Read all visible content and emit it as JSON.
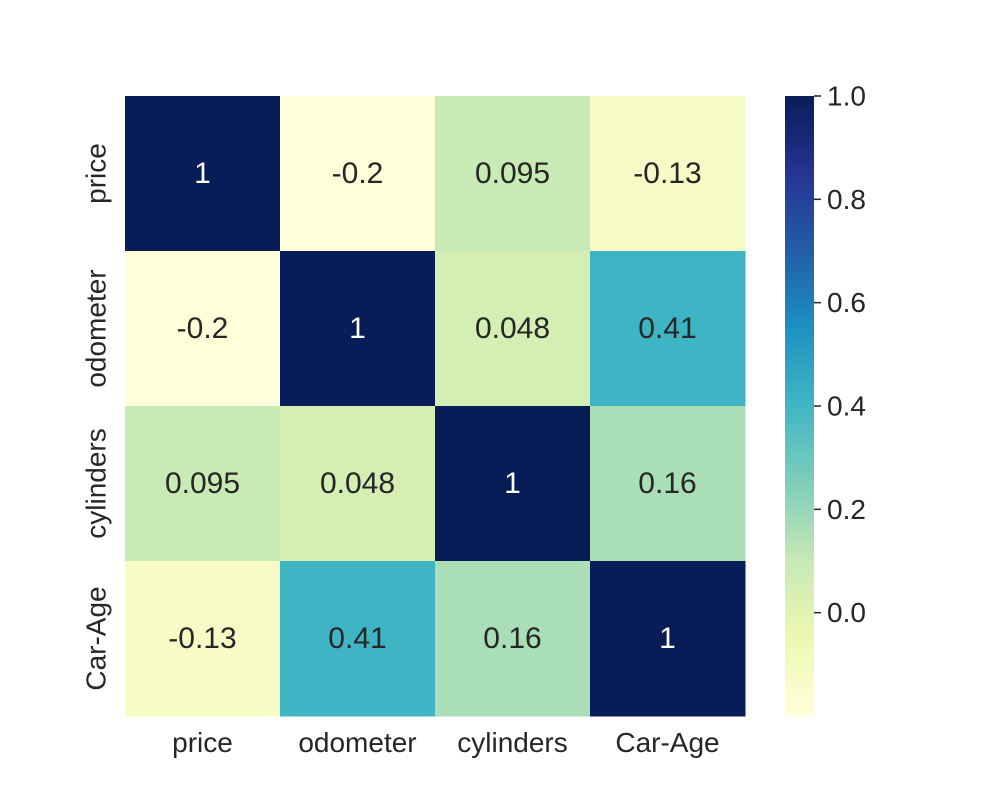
{
  "chart_data": {
    "type": "heatmap",
    "title": "",
    "xlabel": "",
    "ylabel": "",
    "x_categories": [
      "price",
      "odometer",
      "cylinders",
      "Car-Age"
    ],
    "y_categories": [
      "price",
      "odometer",
      "cylinders",
      "Car-Age"
    ],
    "values": [
      [
        1,
        -0.2,
        0.095,
        -0.13
      ],
      [
        -0.2,
        1,
        0.048,
        0.41
      ],
      [
        0.095,
        0.048,
        1,
        0.16
      ],
      [
        -0.13,
        0.41,
        0.16,
        1
      ]
    ],
    "annotations": [
      [
        "1",
        "-0.2",
        "0.095",
        "-0.13"
      ],
      [
        "-0.2",
        "1",
        "0.048",
        "0.41"
      ],
      [
        "0.095",
        "0.048",
        "1",
        "0.16"
      ],
      [
        "-0.13",
        "0.41",
        "0.16",
        "1"
      ]
    ],
    "colorscale": "YlGnBu",
    "color_range": [
      -0.2,
      1.0
    ],
    "colorbar": {
      "ticks": [
        0.0,
        0.2,
        0.4,
        0.6,
        0.8,
        1.0
      ],
      "tick_labels": [
        "0.0",
        "0.2",
        "0.4",
        "0.6",
        "0.8",
        "1.0"
      ]
    },
    "grid": false,
    "legend": "colorbar-right"
  }
}
